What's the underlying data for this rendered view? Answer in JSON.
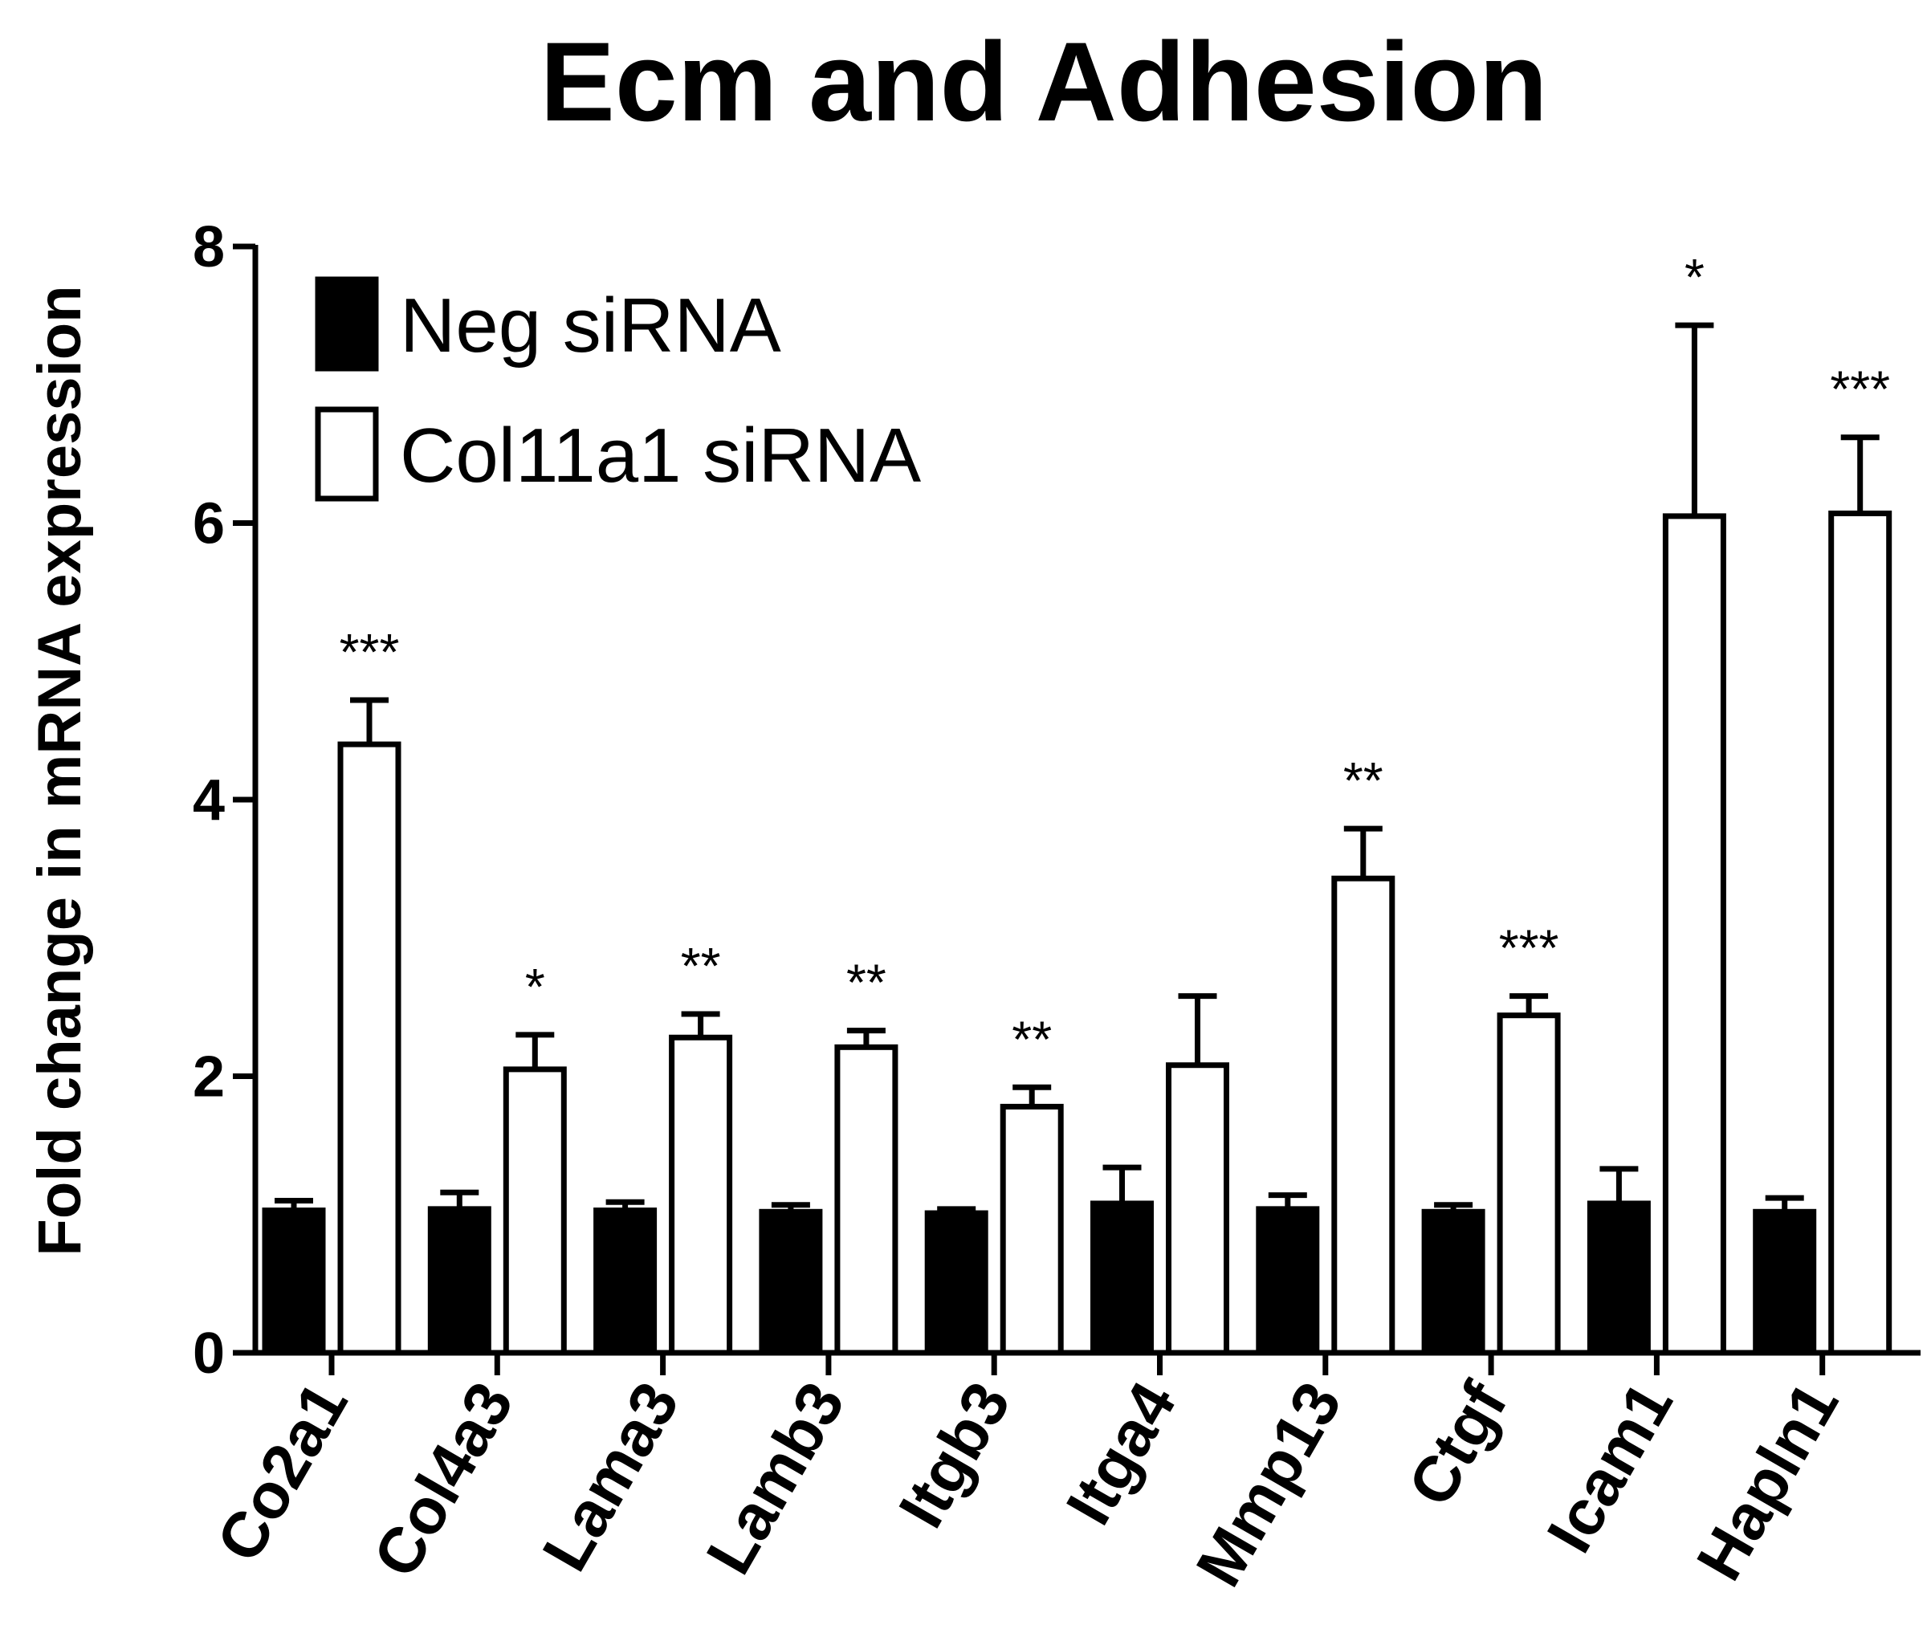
{
  "chart_data": {
    "type": "bar",
    "title": "Ecm and Adhesion",
    "ylabel": "Fold change in mRNA expression",
    "xlabel": "",
    "ylim": [
      0,
      8
    ],
    "yticks": [
      0,
      2,
      4,
      6,
      8
    ],
    "grid": false,
    "legend_position": "top-left",
    "categories": [
      "Co2a1",
      "Col4a3",
      "Lama3",
      "Lamb3",
      "Itgb3",
      "Itga4",
      "Mmp13",
      "Ctgf",
      "Icam1",
      "Hapln1"
    ],
    "series": [
      {
        "name": "Neg siRNA",
        "color": "#000000",
        "values": [
          1.03,
          1.04,
          1.03,
          1.02,
          1.01,
          1.08,
          1.04,
          1.02,
          1.08,
          1.02
        ],
        "errors": [
          0.07,
          0.12,
          0.06,
          0.05,
          0.03,
          0.26,
          0.1,
          0.05,
          0.25,
          0.1
        ]
      },
      {
        "name": "Col11a1 siRNA",
        "color": "#ffffff",
        "values": [
          4.4,
          2.05,
          2.28,
          2.21,
          1.78,
          2.08,
          3.43,
          2.44,
          6.05,
          6.07
        ],
        "errors": [
          0.32,
          0.25,
          0.17,
          0.12,
          0.14,
          0.5,
          0.36,
          0.14,
          1.38,
          0.55
        ]
      }
    ],
    "annotations": [
      "***",
      "*",
      "**",
      "**",
      "**",
      "",
      "**",
      "***",
      "*",
      "***"
    ]
  }
}
